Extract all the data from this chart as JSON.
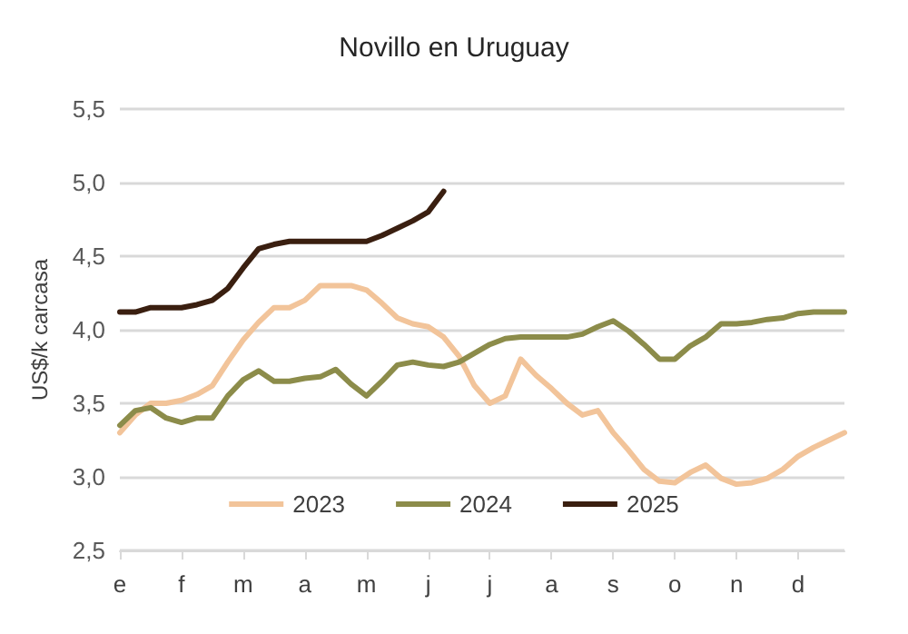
{
  "chart_data": {
    "type": "line",
    "title": "Novillo en Uruguay",
    "ylabel": "US$/k carcasa",
    "categories": [
      "e",
      null,
      null,
      null,
      "f",
      null,
      null,
      null,
      "m",
      null,
      null,
      null,
      "a",
      null,
      null,
      null,
      "m",
      null,
      null,
      null,
      "j",
      null,
      null,
      null,
      "j",
      null,
      null,
      null,
      "a",
      null,
      null,
      null,
      "s",
      null,
      null,
      null,
      "o",
      null,
      null,
      null,
      "n",
      null,
      null,
      null,
      "d",
      null,
      null,
      null
    ],
    "series": [
      {
        "name": "2023",
        "color": "#f2c49a",
        "values": [
          3.3,
          3.42,
          3.5,
          3.5,
          3.52,
          3.56,
          3.62,
          3.78,
          3.93,
          4.05,
          4.15,
          4.15,
          4.2,
          4.3,
          4.3,
          4.3,
          4.27,
          4.18,
          4.08,
          4.04,
          4.02,
          3.95,
          3.82,
          3.62,
          3.5,
          3.55,
          3.8,
          3.69,
          3.6,
          3.5,
          3.42,
          3.45,
          3.3,
          3.18,
          3.05,
          2.97,
          2.96,
          3.03,
          3.08,
          2.99,
          2.95,
          2.96,
          2.99,
          3.05,
          3.14,
          3.2,
          3.25,
          3.3
        ]
      },
      {
        "name": "2024",
        "color": "#8c8c4a",
        "values": [
          3.35,
          3.45,
          3.47,
          3.4,
          3.37,
          3.4,
          3.4,
          3.55,
          3.66,
          3.72,
          3.65,
          3.65,
          3.67,
          3.68,
          3.73,
          3.63,
          3.55,
          3.65,
          3.76,
          3.78,
          3.76,
          3.75,
          3.78,
          3.84,
          3.9,
          3.94,
          3.95,
          3.95,
          3.95,
          3.95,
          3.97,
          4.02,
          4.06,
          3.99,
          3.9,
          3.8,
          3.8,
          3.89,
          3.95,
          4.04,
          4.04,
          4.05,
          4.07,
          4.08,
          4.11,
          4.12,
          4.12,
          4.12
        ]
      },
      {
        "name": "2025",
        "color": "#3a1f10",
        "values": [
          4.12,
          4.12,
          4.15,
          4.15,
          4.15,
          4.17,
          4.2,
          4.28,
          4.42,
          4.55,
          4.58,
          4.6,
          4.6,
          4.6,
          4.6,
          4.6,
          4.6,
          4.64,
          4.69,
          4.74,
          4.8,
          4.94,
          null,
          null,
          null,
          null,
          null,
          null,
          null,
          null,
          null,
          null,
          null,
          null,
          null,
          null,
          null,
          null,
          null,
          null,
          null,
          null,
          null,
          null,
          null,
          null,
          null,
          null
        ]
      }
    ],
    "ylim": [
      2.5,
      5.5
    ],
    "yticks": [
      {
        "value": 2.5,
        "label": "2,5"
      },
      {
        "value": 3,
        "label": "3,0"
      },
      {
        "value": 3.5,
        "label": "3,5"
      },
      {
        "value": 4,
        "label": "4,0"
      },
      {
        "value": 4.5,
        "label": "4,5"
      },
      {
        "value": 5,
        "label": "5,0"
      },
      {
        "value": 5.5,
        "label": "5,5"
      }
    ],
    "grid": "y",
    "legend": "bottom",
    "marker": "none",
    "line_style": "solid"
  }
}
